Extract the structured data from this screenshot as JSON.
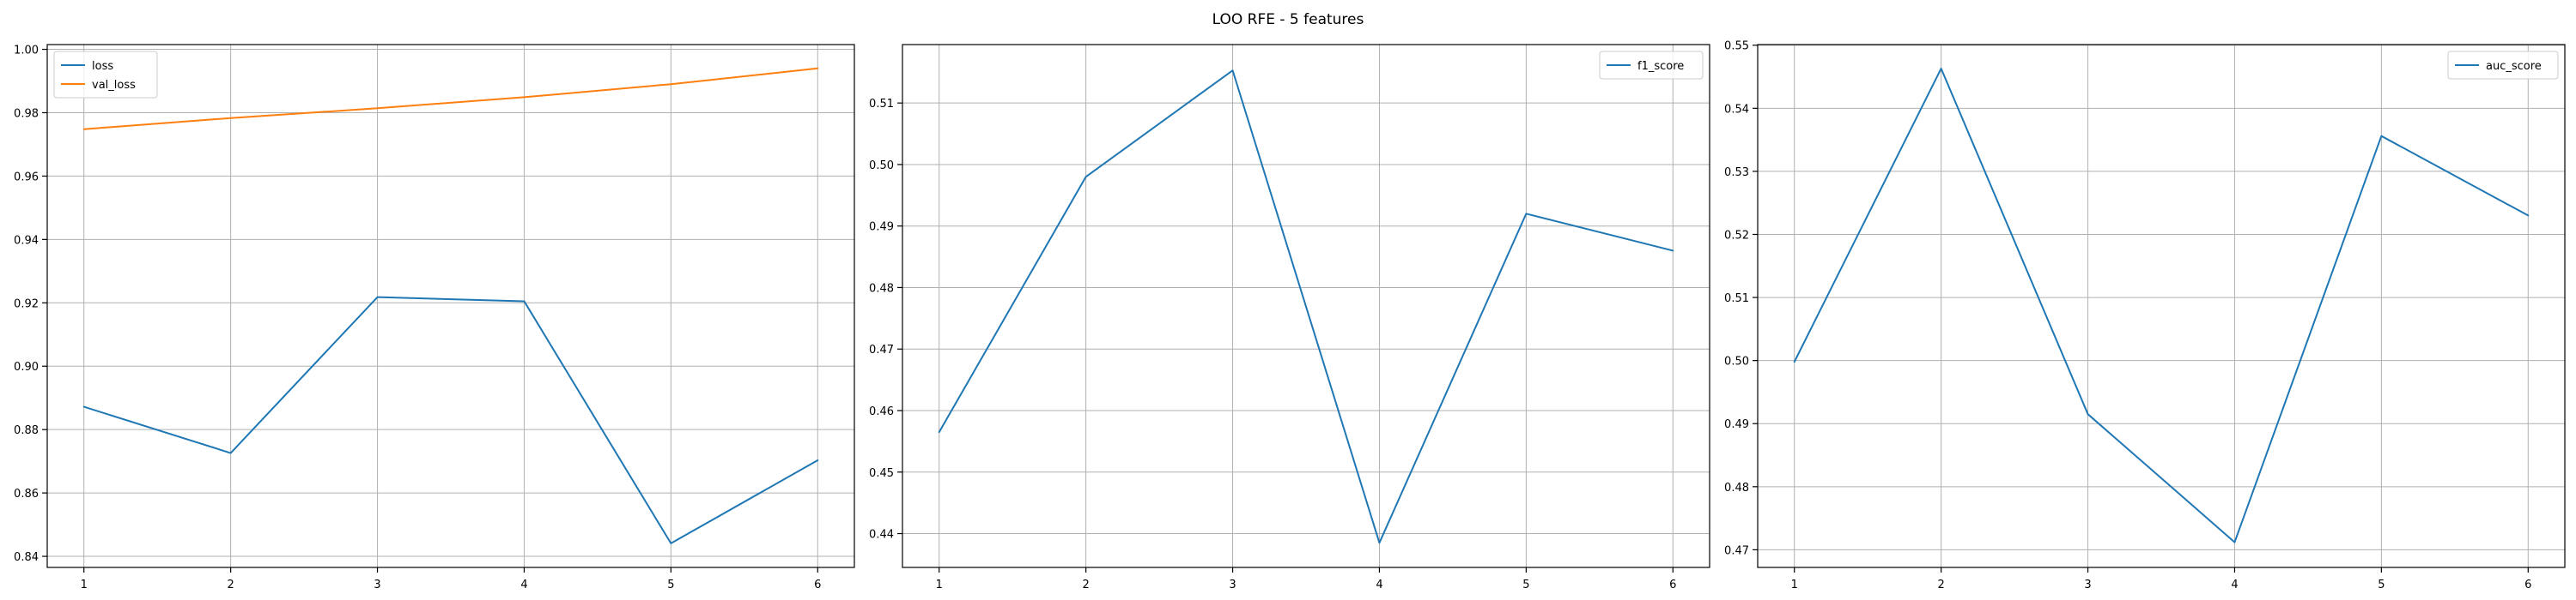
{
  "figure": {
    "suptitle": "LOO RFE - 5 features"
  },
  "chart_data": [
    {
      "type": "line",
      "x": [
        1,
        2,
        3,
        4,
        5,
        6
      ],
      "xticks": [
        "1",
        "2",
        "3",
        "4",
        "5",
        "6"
      ],
      "xlim": [
        0.75,
        6.25
      ],
      "ylim": [
        0.8365,
        1.0015
      ],
      "yticks": [
        0.84,
        0.86,
        0.88,
        0.9,
        0.92,
        0.94,
        0.96,
        0.98,
        1.0
      ],
      "ytick_labels": [
        "0.84",
        "0.86",
        "0.88",
        "0.90",
        "0.92",
        "0.94",
        "0.96",
        "0.98",
        "1.00"
      ],
      "grid": true,
      "legend_position": "top-left",
      "series": [
        {
          "name": "loss",
          "color": "#1f77b4",
          "values": [
            0.8872,
            0.8726,
            0.9218,
            0.9205,
            0.8441,
            0.8703
          ]
        },
        {
          "name": "val_loss",
          "color": "#ff7f0e",
          "values": [
            0.9748,
            0.9783,
            0.9814,
            0.9849,
            0.989,
            0.994
          ]
        }
      ]
    },
    {
      "type": "line",
      "x": [
        1,
        2,
        3,
        4,
        5,
        6
      ],
      "xticks": [
        "1",
        "2",
        "3",
        "4",
        "5",
        "6"
      ],
      "xlim": [
        0.75,
        6.25
      ],
      "ylim": [
        0.4345,
        0.5195
      ],
      "yticks": [
        0.44,
        0.45,
        0.46,
        0.47,
        0.48,
        0.49,
        0.5,
        0.51
      ],
      "ytick_labels": [
        "0.44",
        "0.45",
        "0.46",
        "0.47",
        "0.48",
        "0.49",
        "0.50",
        "0.51"
      ],
      "grid": true,
      "legend_position": "top-right",
      "series": [
        {
          "name": "f1_score",
          "color": "#1f77b4",
          "values": [
            0.4565,
            0.498,
            0.5153,
            0.4385,
            0.492,
            0.486
          ]
        }
      ]
    },
    {
      "type": "line",
      "x": [
        1,
        2,
        3,
        4,
        5,
        6
      ],
      "xticks": [
        "1",
        "2",
        "3",
        "4",
        "5",
        "6"
      ],
      "xlim": [
        0.75,
        6.25
      ],
      "ylim": [
        0.4672,
        0.5501
      ],
      "yticks": [
        0.47,
        0.48,
        0.49,
        0.5,
        0.51,
        0.52,
        0.53,
        0.54,
        0.55
      ],
      "ytick_labels": [
        "0.47",
        "0.48",
        "0.49",
        "0.50",
        "0.51",
        "0.52",
        "0.53",
        "0.54",
        "0.55"
      ],
      "grid": true,
      "legend_position": "top-right",
      "series": [
        {
          "name": "auc_score",
          "color": "#1f77b4",
          "values": [
            0.4998,
            0.5463,
            0.4915,
            0.4712,
            0.5356,
            0.523
          ]
        }
      ]
    }
  ]
}
